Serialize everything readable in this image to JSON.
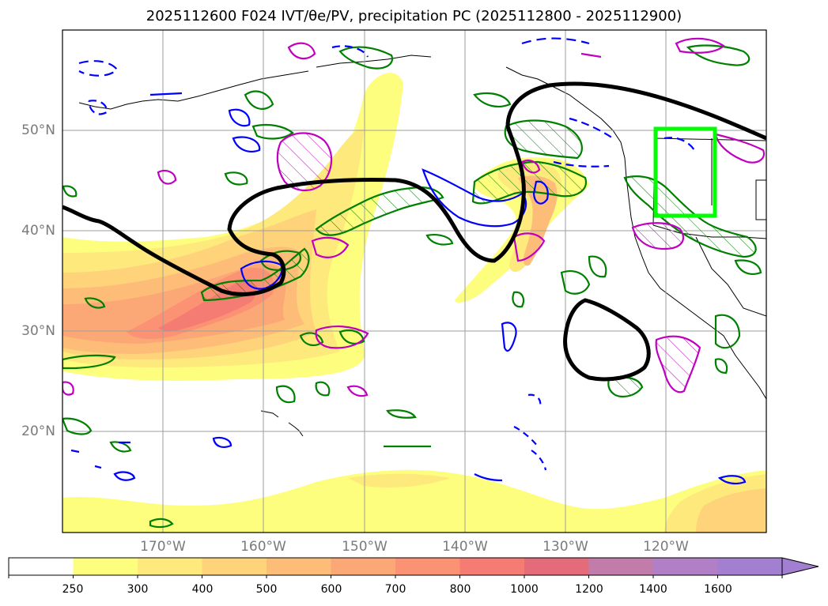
{
  "title": "2025112600 F024 IVT/θe/PV, precipitation PC (2025112800 - 2025112900)",
  "lat_labels": [
    "50°N",
    "40°N",
    "30°N",
    "20°N"
  ],
  "lon_labels": [
    "170°W",
    "160°W",
    "150°W",
    "140°W",
    "130°W",
    "120°W"
  ],
  "colorbar": {
    "ticks": [
      "250",
      "300",
      "400",
      "500",
      "600",
      "700",
      "800",
      "1000",
      "1200",
      "1400",
      "1600"
    ],
    "colors": [
      "#ffffff",
      "#fefe7e",
      "#fee97c",
      "#fed37a",
      "#fdbd78",
      "#fca876",
      "#fb9274",
      "#f47c72",
      "#e36b7a",
      "#c27caa",
      "#b07fc6",
      "#a27fd1"
    ],
    "extend": "max"
  },
  "overlays": {
    "jet_contour_color": "#000000",
    "pv_contour_color": "#008000",
    "theta_e_contour_color": "#0000ff",
    "pc_contour_color": "#c000c0",
    "highlight_box_color": "#00ff00"
  }
}
